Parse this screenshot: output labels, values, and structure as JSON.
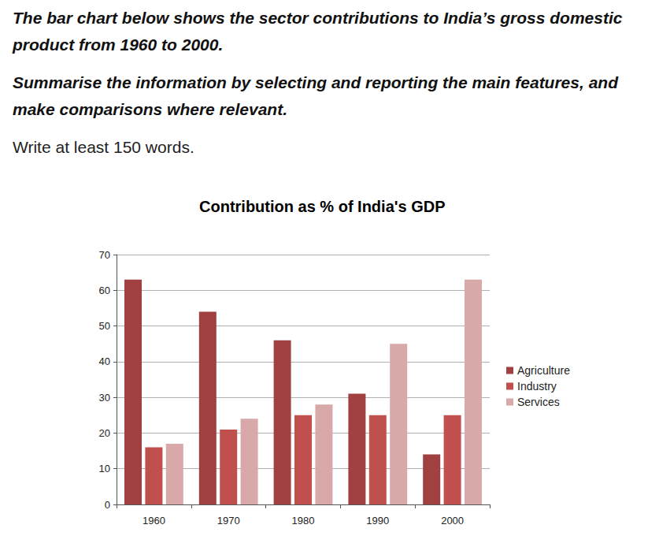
{
  "prompt": {
    "task": "The bar chart below shows the sector contributions to India’s gross domestic product from 1960 to 2000.",
    "summary_instruction": "Summarise the information by selecting and reporting the main features, and make comparisons where relevant.",
    "word_count": "Write at least 150 words."
  },
  "chart_data": {
    "type": "bar",
    "title": "Contribution as % of India's GDP",
    "categories": [
      "1960",
      "1970",
      "1980",
      "1990",
      "2000"
    ],
    "series": [
      {
        "name": "Agriculture",
        "color": "#a04040",
        "values": [
          63,
          54,
          46,
          31,
          14
        ]
      },
      {
        "name": "Industry",
        "color": "#c0504d",
        "values": [
          16,
          21,
          25,
          25,
          25
        ]
      },
      {
        "name": "Services",
        "color": "#d9a9a9",
        "values": [
          17,
          24,
          28,
          45,
          63
        ]
      }
    ],
    "ylim": [
      0,
      70
    ],
    "yticks": [
      0,
      10,
      20,
      30,
      40,
      50,
      60,
      70
    ],
    "grid": true,
    "legend": "right"
  }
}
